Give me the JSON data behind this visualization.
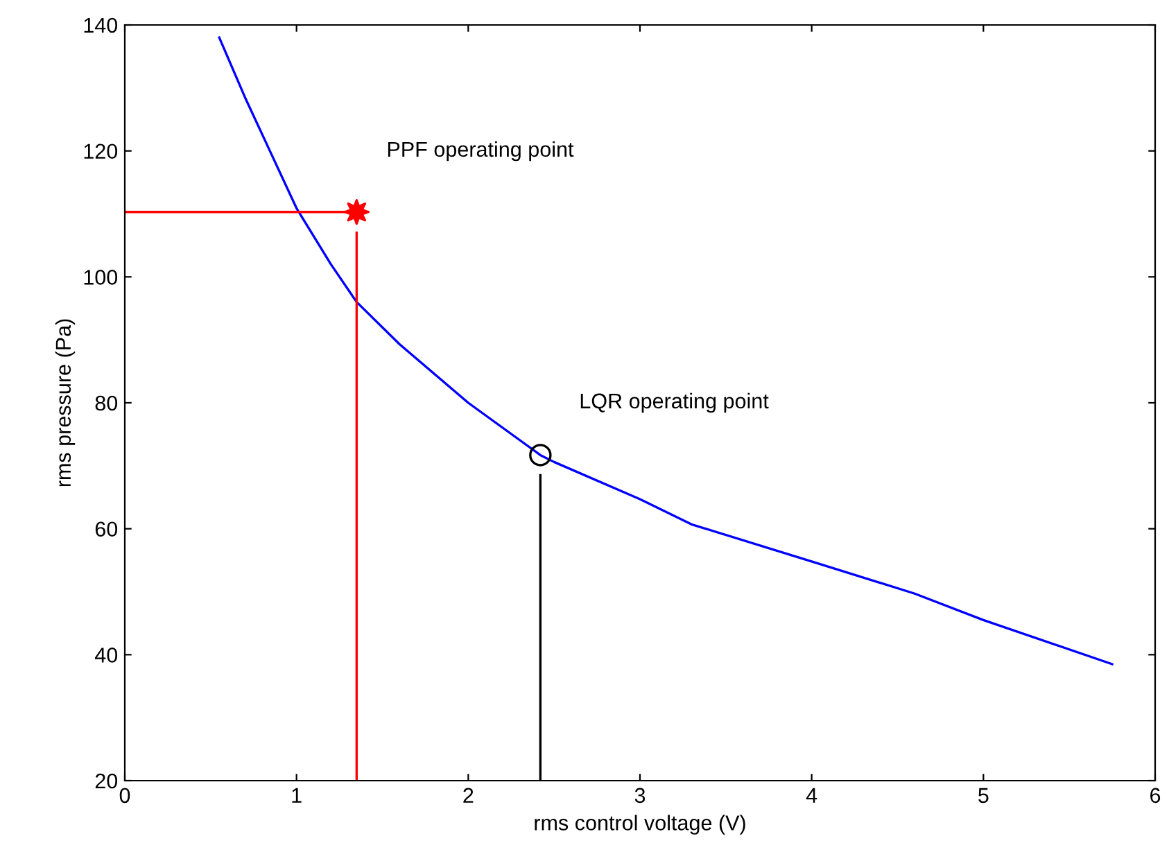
{
  "chart_data": {
    "type": "line",
    "xlabel": "rms control voltage (V)",
    "ylabel": "rms pressure (Pa)",
    "xlim": [
      0,
      6
    ],
    "ylim": [
      20,
      140
    ],
    "xticks": [
      0,
      1,
      2,
      3,
      4,
      5,
      6
    ],
    "yticks": [
      20,
      40,
      60,
      80,
      100,
      120,
      140
    ],
    "grid": false,
    "series": [
      {
        "color": "#0000ff",
        "x": [
          0.55,
          0.7,
          0.85,
          1.0,
          1.2,
          1.35,
          1.6,
          2.0,
          2.42,
          2.5,
          3.0,
          3.3,
          4.0,
          4.6,
          5.0,
          5.75
        ],
        "values": [
          138,
          128.5,
          119.7,
          110.9,
          102,
          96,
          89.3,
          80,
          71.7,
          70.6,
          64.7,
          60.7,
          54.8,
          49.7,
          45.5,
          38.5
        ]
      },
      {
        "type": "line",
        "color": "#ff0000",
        "x": [
          0,
          1.35
        ],
        "values": [
          110.3,
          110.3
        ]
      },
      {
        "type": "line",
        "color": "#ff0000",
        "x": [
          1.35,
          1.35
        ],
        "values": [
          20,
          107
        ]
      },
      {
        "type": "line",
        "color": "#000000",
        "x": [
          2.42,
          2.42
        ],
        "values": [
          20,
          68.5
        ]
      },
      {
        "type": "scatter",
        "color": "#ff0000",
        "marker": "star",
        "x": [
          1.35
        ],
        "values": [
          110.3
        ]
      },
      {
        "type": "scatter",
        "color": "#000000",
        "marker": "circle",
        "x": [
          2.42
        ],
        "values": [
          71.7
        ]
      }
    ],
    "annotations": [
      "PPF operating point",
      "LQR operating point"
    ]
  }
}
